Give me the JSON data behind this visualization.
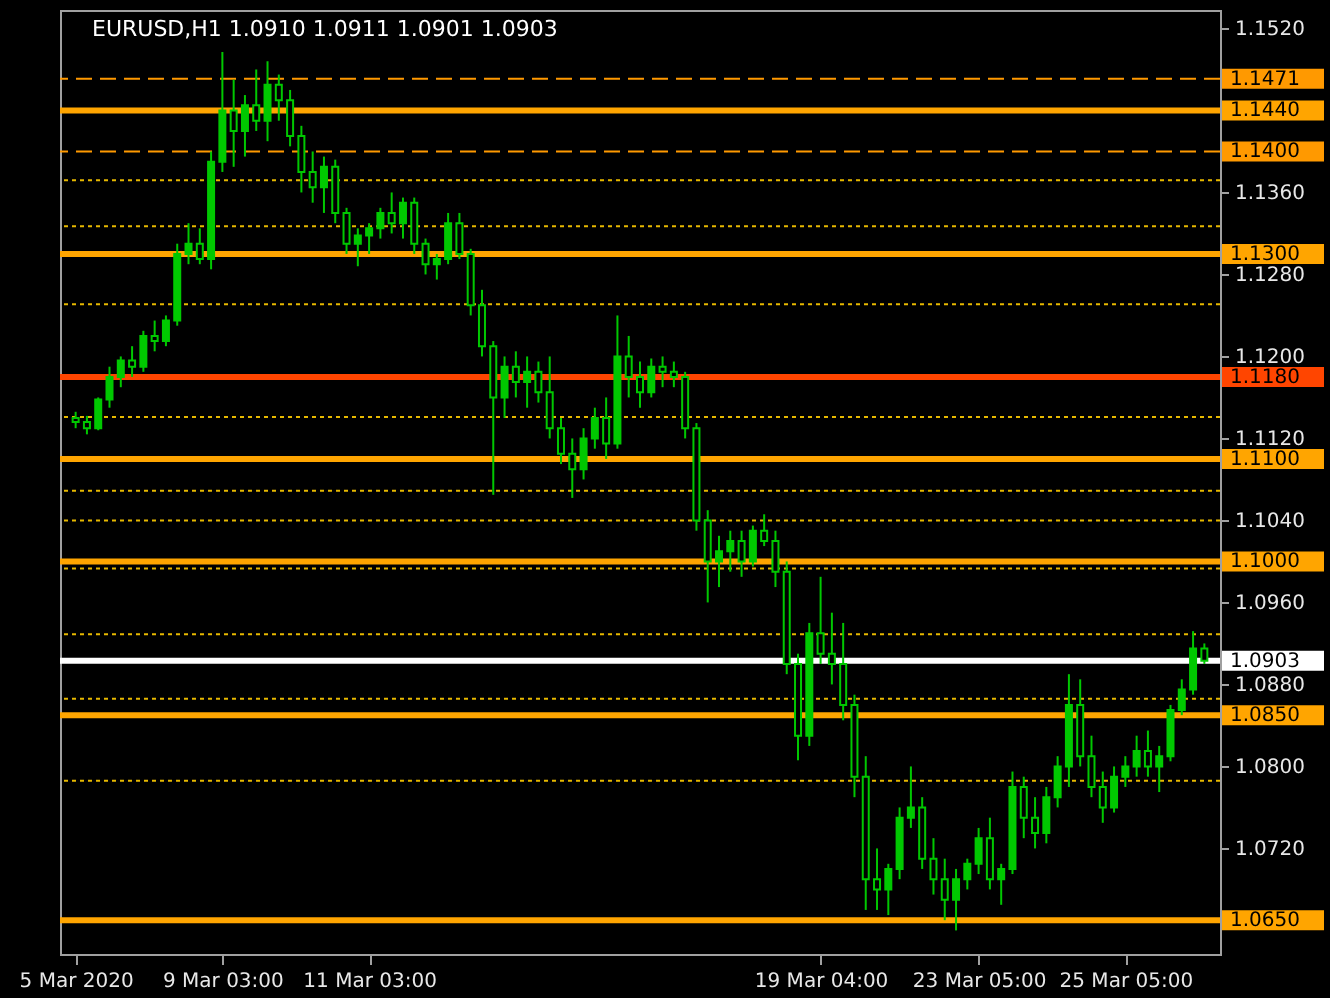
{
  "chart_data": {
    "type": "candlestick",
    "title": "EURUSD,H1  1.0910 1.0911 1.0901 1.0903",
    "color": "#00c800",
    "categories": [
      "5 Mar 2020",
      null,
      null,
      null,
      null,
      null,
      null,
      null,
      null,
      null,
      null,
      null,
      null,
      "9 Mar 03:00",
      null,
      null,
      null,
      null,
      null,
      null,
      null,
      null,
      null,
      null,
      null,
      null,
      "11 Mar 03:00",
      null,
      null,
      null,
      null,
      null,
      null,
      null,
      null,
      null,
      null,
      null,
      null,
      null,
      null,
      null,
      null,
      null,
      null,
      null,
      null,
      null,
      null,
      null,
      null,
      null,
      null,
      null,
      null,
      null,
      null,
      null,
      null,
      null,
      null,
      null,
      null,
      null,
      null,
      null,
      "19 Mar 04:00",
      null,
      null,
      null,
      null,
      null,
      null,
      null,
      null,
      null,
      null,
      null,
      null,
      null,
      "23 Mar 05:00",
      null,
      null,
      null,
      null,
      null,
      null,
      null,
      null,
      null,
      null,
      null,
      null,
      "25 Mar 05:00",
      null,
      null,
      null,
      null,
      null,
      null,
      null
    ],
    "ohlc": [
      [
        1.114,
        1.1146,
        1.113,
        1.1136
      ],
      [
        1.1136,
        1.1142,
        1.1124,
        1.113
      ],
      [
        1.113,
        1.116,
        1.1128,
        1.1158
      ],
      [
        1.1158,
        1.119,
        1.115,
        1.118
      ],
      [
        1.118,
        1.12,
        1.117,
        1.1196
      ],
      [
        1.1196,
        1.121,
        1.118,
        1.119
      ],
      [
        1.119,
        1.1225,
        1.1185,
        1.122
      ],
      [
        1.122,
        1.1235,
        1.1205,
        1.1215
      ],
      [
        1.1215,
        1.124,
        1.121,
        1.1235
      ],
      [
        1.1235,
        1.131,
        1.123,
        1.13
      ],
      [
        1.13,
        1.133,
        1.129,
        1.131
      ],
      [
        1.131,
        1.1325,
        1.129,
        1.1295
      ],
      [
        1.1295,
        1.14,
        1.1285,
        1.139
      ],
      [
        1.139,
        1.1497,
        1.138,
        1.144
      ],
      [
        1.144,
        1.147,
        1.1385,
        1.142
      ],
      [
        1.142,
        1.1455,
        1.1395,
        1.1445
      ],
      [
        1.1445,
        1.148,
        1.142,
        1.143
      ],
      [
        1.143,
        1.1488,
        1.141,
        1.1465
      ],
      [
        1.1465,
        1.1475,
        1.143,
        1.145
      ],
      [
        1.145,
        1.146,
        1.1405,
        1.1415
      ],
      [
        1.1415,
        1.1425,
        1.136,
        1.138
      ],
      [
        1.138,
        1.14,
        1.135,
        1.1365
      ],
      [
        1.1365,
        1.1395,
        1.134,
        1.1385
      ],
      [
        1.1385,
        1.1392,
        1.133,
        1.134
      ],
      [
        1.134,
        1.1345,
        1.13,
        1.131
      ],
      [
        1.131,
        1.1325,
        1.1288,
        1.1318
      ],
      [
        1.1318,
        1.133,
        1.13,
        1.1325
      ],
      [
        1.1325,
        1.1345,
        1.1315,
        1.134
      ],
      [
        1.134,
        1.136,
        1.132,
        1.133
      ],
      [
        1.133,
        1.1355,
        1.1315,
        1.135
      ],
      [
        1.135,
        1.1355,
        1.13,
        1.131
      ],
      [
        1.131,
        1.1315,
        1.128,
        1.129
      ],
      [
        1.129,
        1.13,
        1.1275,
        1.1295
      ],
      [
        1.1295,
        1.134,
        1.129,
        1.133
      ],
      [
        1.133,
        1.134,
        1.1295,
        1.13
      ],
      [
        1.13,
        1.1305,
        1.124,
        1.125
      ],
      [
        1.125,
        1.1265,
        1.12,
        1.121
      ],
      [
        1.121,
        1.1215,
        1.1065,
        1.116
      ],
      [
        1.116,
        1.12,
        1.114,
        1.119
      ],
      [
        1.119,
        1.1205,
        1.116,
        1.1175
      ],
      [
        1.1175,
        1.12,
        1.115,
        1.1185
      ],
      [
        1.1185,
        1.1195,
        1.1155,
        1.1165
      ],
      [
        1.1165,
        1.12,
        1.112,
        1.113
      ],
      [
        1.113,
        1.114,
        1.1095,
        1.1105
      ],
      [
        1.1105,
        1.112,
        1.1062,
        1.109
      ],
      [
        1.109,
        1.113,
        1.108,
        1.112
      ],
      [
        1.112,
        1.115,
        1.111,
        1.114
      ],
      [
        1.114,
        1.116,
        1.11,
        1.1115
      ],
      [
        1.1115,
        1.124,
        1.111,
        1.12
      ],
      [
        1.12,
        1.122,
        1.116,
        1.118
      ],
      [
        1.118,
        1.1195,
        1.115,
        1.1165
      ],
      [
        1.1165,
        1.1198,
        1.116,
        1.119
      ],
      [
        1.119,
        1.12,
        1.117,
        1.1185
      ],
      [
        1.1185,
        1.1195,
        1.117,
        1.118
      ],
      [
        1.118,
        1.1185,
        1.112,
        1.113
      ],
      [
        1.113,
        1.1135,
        1.103,
        1.104
      ],
      [
        1.104,
        1.105,
        1.096,
        1.1
      ],
      [
        1.1,
        1.1025,
        1.0975,
        1.101
      ],
      [
        1.101,
        1.103,
        1.099,
        1.102
      ],
      [
        1.102,
        1.103,
        1.0985,
        1.1
      ],
      [
        1.1,
        1.1035,
        1.0995,
        1.103
      ],
      [
        1.103,
        1.1046,
        1.1015,
        1.102
      ],
      [
        1.102,
        1.103,
        1.0975,
        1.099
      ],
      [
        1.099,
        1.1,
        1.089,
        1.09
      ],
      [
        1.09,
        1.091,
        1.0806,
        1.083
      ],
      [
        1.083,
        1.094,
        1.082,
        1.093
      ],
      [
        1.093,
        1.0985,
        1.09,
        1.091
      ],
      [
        1.091,
        1.095,
        1.088,
        1.09
      ],
      [
        1.09,
        1.094,
        1.0845,
        1.086
      ],
      [
        1.086,
        1.087,
        1.077,
        1.079
      ],
      [
        1.079,
        1.081,
        1.066,
        1.069
      ],
      [
        1.069,
        1.072,
        1.066,
        1.068
      ],
      [
        1.068,
        1.0705,
        1.0655,
        1.07
      ],
      [
        1.07,
        1.076,
        1.069,
        1.075
      ],
      [
        1.075,
        1.08,
        1.074,
        1.076
      ],
      [
        1.076,
        1.077,
        1.07,
        1.071
      ],
      [
        1.071,
        1.073,
        1.0675,
        1.069
      ],
      [
        1.069,
        1.071,
        1.065,
        1.067
      ],
      [
        1.067,
        1.07,
        1.064,
        1.069
      ],
      [
        1.069,
        1.071,
        1.068,
        1.0705
      ],
      [
        1.0705,
        1.074,
        1.0695,
        1.073
      ],
      [
        1.073,
        1.075,
        1.068,
        1.069
      ],
      [
        1.069,
        1.0705,
        1.0665,
        1.07
      ],
      [
        1.07,
        1.0795,
        1.0695,
        1.078
      ],
      [
        1.078,
        1.079,
        1.073,
        1.075
      ],
      [
        1.075,
        1.077,
        1.072,
        1.0735
      ],
      [
        1.0735,
        1.078,
        1.0725,
        1.077
      ],
      [
        1.077,
        1.081,
        1.076,
        1.08
      ],
      [
        1.08,
        1.089,
        1.078,
        1.086
      ],
      [
        1.086,
        1.0885,
        1.08,
        1.081
      ],
      [
        1.081,
        1.083,
        1.077,
        1.078
      ],
      [
        1.078,
        1.0795,
        1.0745,
        1.076
      ],
      [
        1.076,
        1.08,
        1.0755,
        1.079
      ],
      [
        1.079,
        1.081,
        1.078,
        1.08
      ],
      [
        1.08,
        1.083,
        1.079,
        1.0815
      ],
      [
        1.0815,
        1.0835,
        1.079,
        1.08
      ],
      [
        1.08,
        1.082,
        1.0775,
        1.081
      ],
      [
        1.081,
        1.086,
        1.0805,
        1.0855
      ],
      [
        1.0855,
        1.0885,
        1.085,
        1.0875
      ],
      [
        1.0875,
        1.0932,
        1.087,
        1.0915
      ],
      [
        1.0915,
        1.092,
        1.09,
        1.0903
      ]
    ],
    "ylim": [
      1.0617,
      1.1538
    ],
    "yticks": [
      {
        "value": 1.152,
        "label": "1.1520"
      },
      {
        "value": 1.136,
        "label": "1.1360"
      },
      {
        "value": 1.128,
        "label": "1.1280"
      },
      {
        "value": 1.12,
        "label": "1.1200"
      },
      {
        "value": 1.112,
        "label": "1.1120"
      },
      {
        "value": 1.104,
        "label": "1.1040"
      },
      {
        "value": 1.096,
        "label": "1.0960"
      },
      {
        "value": 1.088,
        "label": "1.0880"
      },
      {
        "value": 1.08,
        "label": "1.0800"
      },
      {
        "value": 1.072,
        "label": "1.0720"
      }
    ],
    "ref_lines": [
      {
        "axis": "y",
        "value": 1.1471,
        "label": "1.1471",
        "color": "#ff9900",
        "line_style": "dashed"
      },
      {
        "axis": "y",
        "value": 1.144,
        "label": "1.1440",
        "color": "#ffa500",
        "line_style": "solid"
      },
      {
        "axis": "y",
        "value": 1.14,
        "label": "1.1400",
        "color": "#ff9900",
        "line_style": "dashed"
      },
      {
        "axis": "y",
        "value": 1.1372,
        "color": "#e6b800",
        "line_style": "dotted"
      },
      {
        "axis": "y",
        "value": 1.1327,
        "color": "#e6b800",
        "line_style": "dotted"
      },
      {
        "axis": "y",
        "value": 1.13,
        "label": "1.1300",
        "color": "#ffa500",
        "line_style": "solid"
      },
      {
        "axis": "y",
        "value": 1.1251,
        "color": "#e6b800",
        "line_style": "dotted"
      },
      {
        "axis": "y",
        "value": 1.118,
        "label": "1.1180",
        "color": "#ff4500",
        "line_style": "solid"
      },
      {
        "axis": "y",
        "value": 1.1141,
        "color": "#e6b800",
        "line_style": "dotted"
      },
      {
        "axis": "y",
        "value": 1.11,
        "label": "1.1100",
        "color": "#ffa500",
        "line_style": "solid"
      },
      {
        "axis": "y",
        "value": 1.1069,
        "color": "#e6b800",
        "line_style": "dotted"
      },
      {
        "axis": "y",
        "value": 1.104,
        "color": "#e6b800",
        "line_style": "dotted"
      },
      {
        "axis": "y",
        "value": 1.1,
        "label": "1.1000",
        "color": "#ffa500",
        "line_style": "solid"
      },
      {
        "axis": "y",
        "value": 1.0993,
        "color": "#e6b800",
        "line_style": "dotted"
      },
      {
        "axis": "y",
        "value": 1.0929,
        "color": "#e6b800",
        "line_style": "dotted"
      },
      {
        "axis": "y",
        "value": 1.0903,
        "label": "1.0903",
        "color": "#ffffff",
        "line_style": "solid"
      },
      {
        "axis": "y",
        "value": 1.0866,
        "color": "#e6b800",
        "line_style": "dotted"
      },
      {
        "axis": "y",
        "value": 1.085,
        "label": "1.0850",
        "color": "#ffa500",
        "line_style": "solid"
      },
      {
        "axis": "y",
        "value": 1.0786,
        "color": "#e6b800",
        "line_style": "dotted"
      },
      {
        "axis": "y",
        "value": 1.065,
        "label": "1.0650",
        "color": "#ffa500",
        "line_style": "solid"
      }
    ]
  }
}
